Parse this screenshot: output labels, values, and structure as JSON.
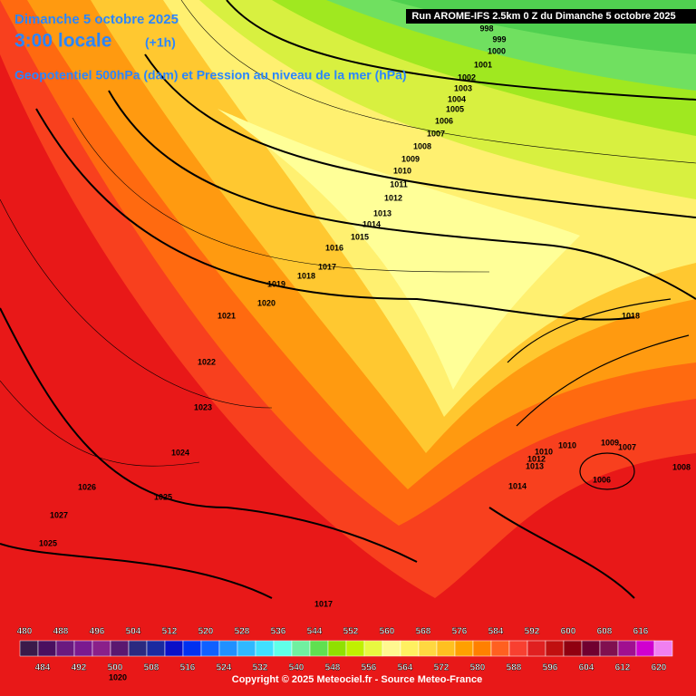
{
  "header": {
    "date": "Dimanche 5 octobre 2025",
    "time": "3:00 locale",
    "offset": "(+1h)",
    "subtitle": "Geopotentiel 500hPa (dam) et Pression au niveau de la mer (hPa)",
    "run": "Run AROME-IFS 2.5km 0 Z du Dimanche 5 octobre 2025"
  },
  "isobar_labels": [
    998,
    999,
    1000,
    1001,
    1002,
    1003,
    1004,
    1005,
    1006,
    1007,
    1008,
    1009,
    1010,
    1011,
    1012,
    1013,
    1014,
    1015,
    1016,
    1017,
    1018,
    1019,
    1020,
    1021,
    1022,
    1023,
    1024,
    1026,
    1025,
    1027,
    1025,
    1017,
    1018,
    1010,
    1009,
    1007,
    1006,
    1008,
    1014,
    1010,
    1012,
    1013,
    1020
  ],
  "legend": {
    "labels": [
      480,
      484,
      488,
      492,
      496,
      500,
      504,
      508,
      512,
      516,
      520,
      524,
      528,
      532,
      536,
      540,
      544,
      548,
      552,
      556,
      560,
      564,
      568,
      572,
      576,
      580,
      584,
      588,
      592,
      596,
      600,
      604,
      608,
      612,
      616,
      620
    ],
    "colors": [
      "#3a1a4a",
      "#4a1060",
      "#6a1a80",
      "#7a1a90",
      "#8a208a",
      "#5a1870",
      "#2a2a80",
      "#1a2aa0",
      "#0a10c8",
      "#0030f0",
      "#1060ff",
      "#2090ff",
      "#30b8ff",
      "#40e0ff",
      "#60ffe8",
      "#70f0a0",
      "#60e050",
      "#90e000",
      "#c0f000",
      "#e8f840",
      "#fff890",
      "#fff060",
      "#ffd840",
      "#ffc020",
      "#ffa000",
      "#ff8000",
      "#ff6020",
      "#f84030",
      "#e02020",
      "#c01010",
      "#900010",
      "#700030",
      "#801050",
      "#a01090",
      "#d000d0",
      "#f080f0"
    ]
  },
  "footer": "Copyright © 2025 Meteociel.fr - Source Meteo-France"
}
